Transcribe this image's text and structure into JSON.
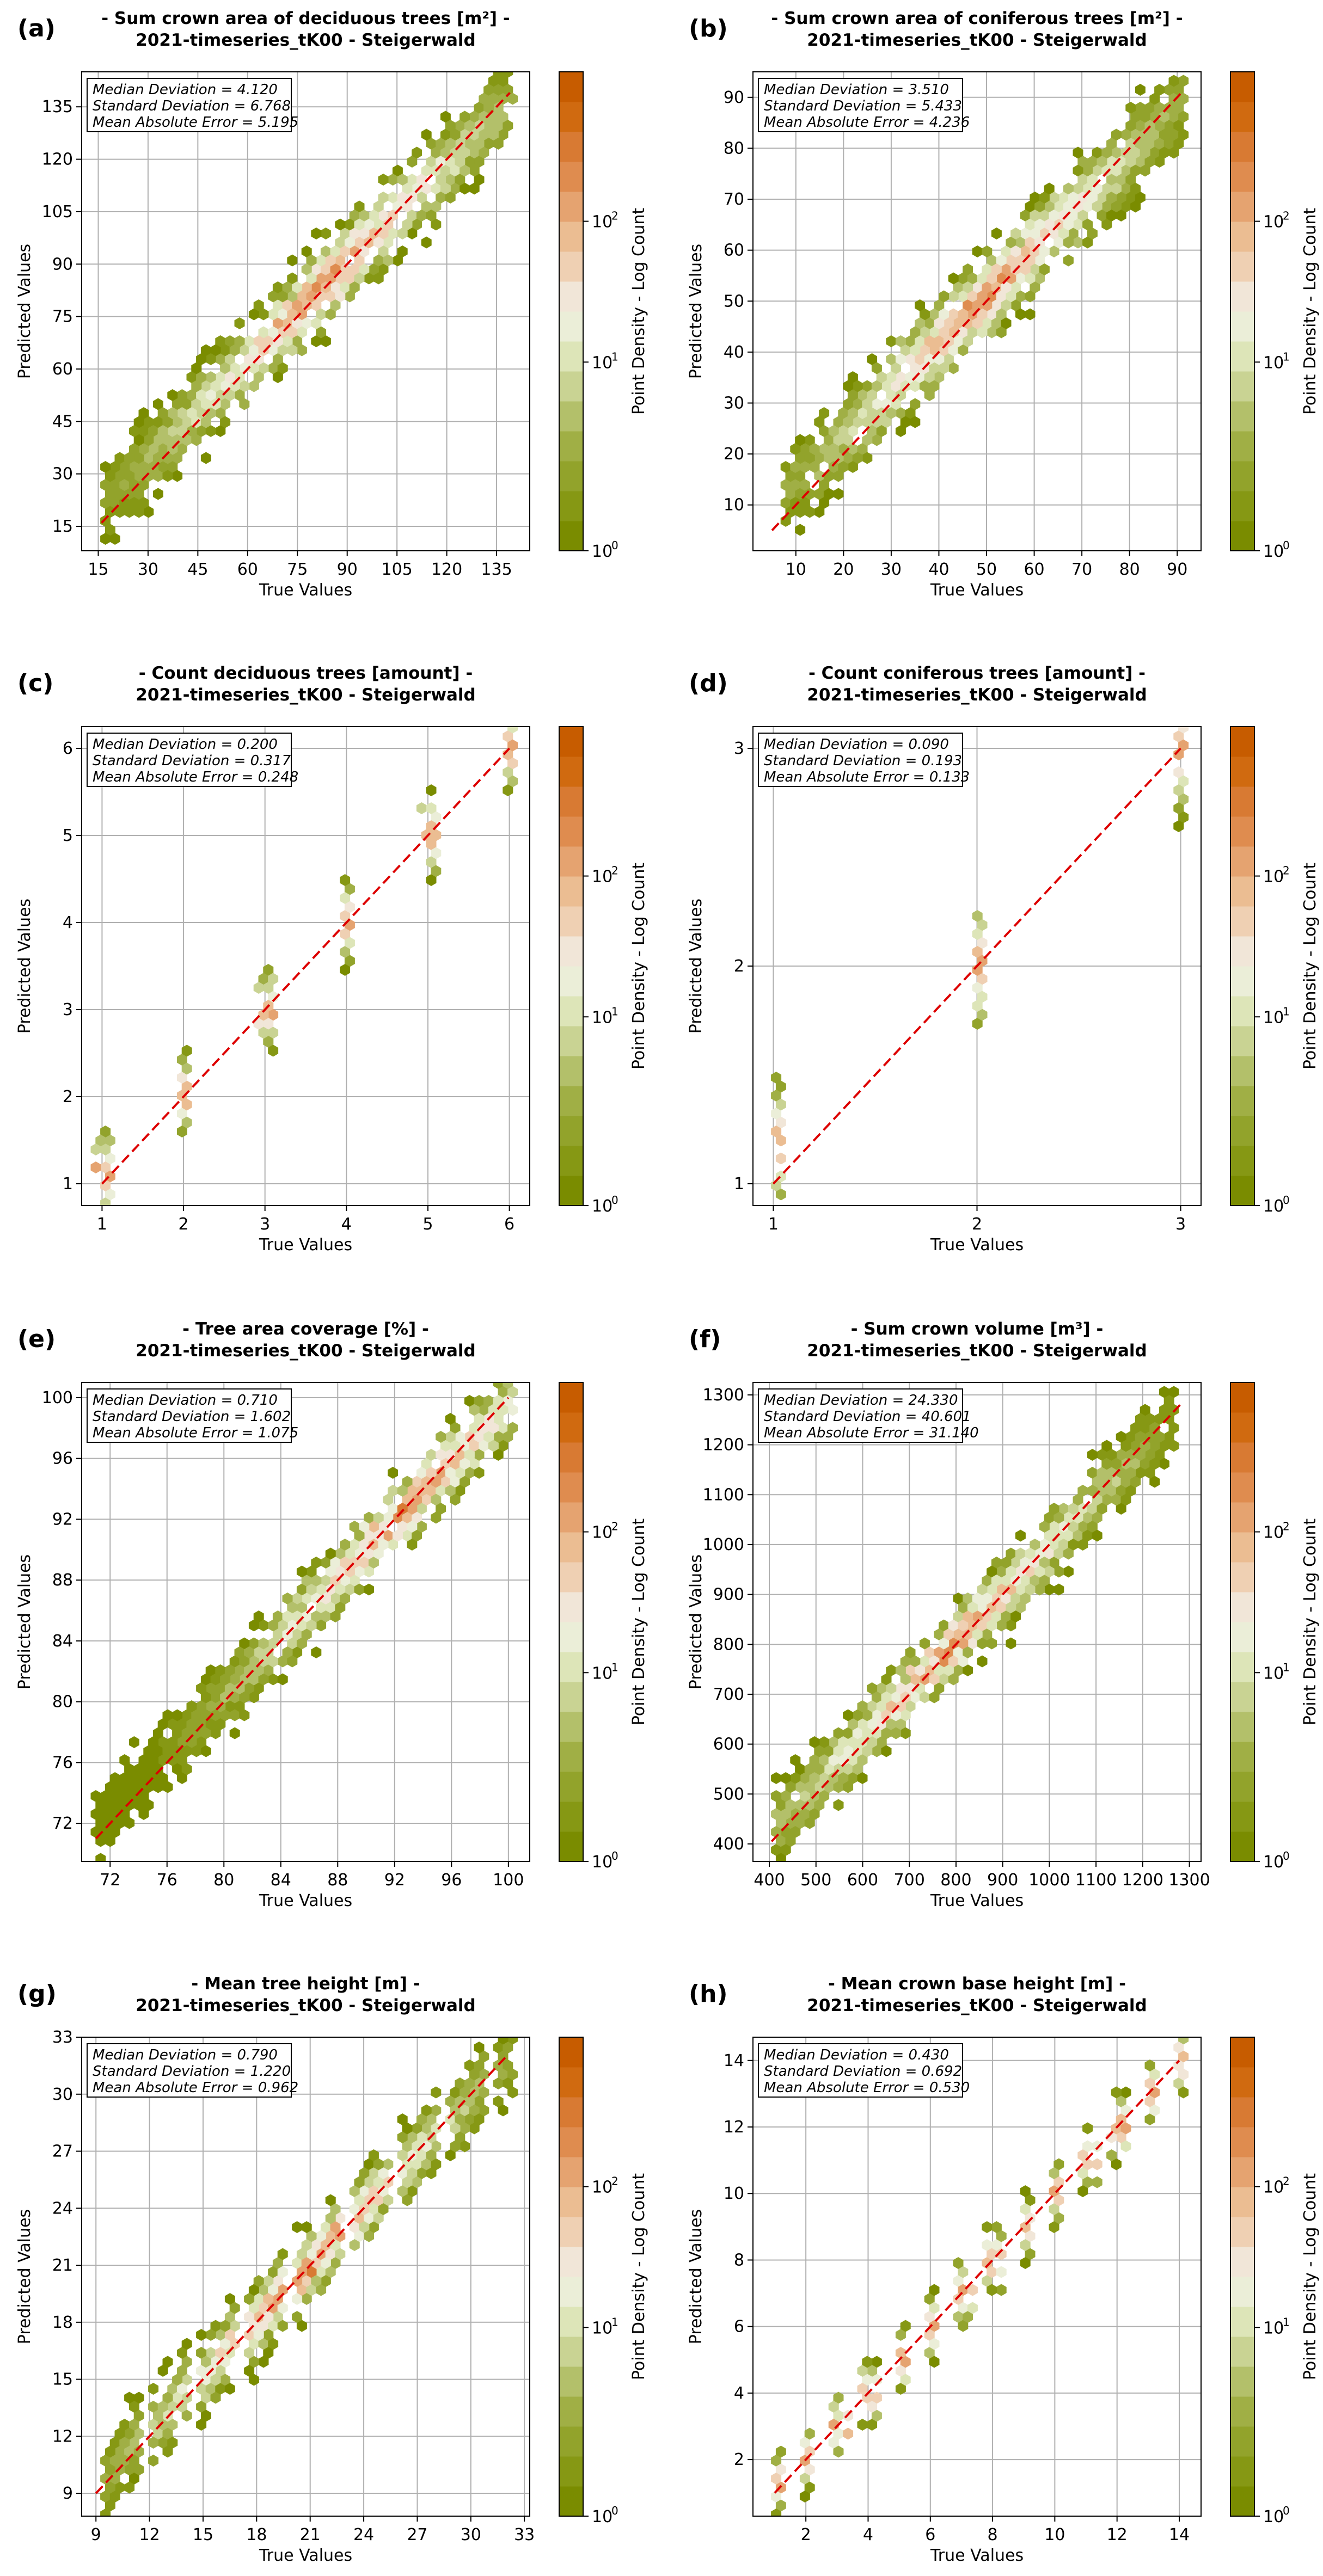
{
  "colormap": [
    "#7a8c00",
    "#869814",
    "#92a32b",
    "#a0af45",
    "#b3c06a",
    "#c9d393",
    "#dde5b8",
    "#ebeed8",
    "#f1e6d8",
    "#efd0b3",
    "#ebbd92",
    "#e5a370",
    "#df8c4f",
    "#d87a33",
    "#d06a10",
    "#c75c00"
  ],
  "colors": {
    "diagonal": "#dd0000",
    "grid": "#b0b0b0"
  },
  "common": {
    "xlabel": "True Values",
    "ylabel": "Predicted Values",
    "colorbar_label": "Point Density - Log Count",
    "colorbar_ticks": [
      "10",
      "10",
      "10"
    ],
    "colorbar_exponents": [
      "0",
      "1",
      "2"
    ]
  },
  "chart_data": [
    {
      "type": "hexbin",
      "label": "(a)",
      "title": "- Sum crown area of deciduous trees [m²] -",
      "subtitle": "2021-timeseries_tK00 - Steigerwald",
      "stats": [
        "Median Deviation = 4.120",
        "Standard Deviation = 6.768",
        "Mean Absolute Error = 5.195"
      ],
      "xlim": [
        10,
        145
      ],
      "ylim": [
        8,
        145
      ],
      "xticks": [
        15,
        30,
        45,
        60,
        75,
        90,
        105,
        120,
        135
      ],
      "yticks": [
        15,
        30,
        45,
        60,
        75,
        90,
        105,
        120,
        135
      ],
      "diag": [
        16,
        139
      ],
      "bias": 6,
      "spread": 6,
      "min": 16,
      "max": 139,
      "mode": "continuous",
      "peak": 0.55
    },
    {
      "type": "hexbin",
      "label": "(b)",
      "title": "- Sum crown area of coniferous trees [m²] -",
      "subtitle": "2021-timeseries_tK00 - Steigerwald",
      "stats": [
        "Median Deviation = 3.510",
        "Standard Deviation = 5.433",
        "Mean Absolute Error = 4.236"
      ],
      "xlim": [
        1,
        95
      ],
      "ylim": [
        1,
        95
      ],
      "xticks": [
        10,
        20,
        30,
        40,
        50,
        60,
        70,
        80,
        90
      ],
      "yticks": [
        10,
        20,
        30,
        40,
        50,
        60,
        70,
        80,
        90
      ],
      "diag": [
        5,
        91
      ],
      "bias": 5,
      "spread": 4.5,
      "min": 8,
      "max": 91,
      "mode": "continuous",
      "peak": 0.5
    },
    {
      "type": "hexbin",
      "label": "(c)",
      "title": "- Count deciduous trees [amount] -",
      "subtitle": "2021-timeseries_tK00 - Steigerwald",
      "stats": [
        "Median Deviation = 0.200",
        "Standard Deviation = 0.317",
        "Mean Absolute Error = 0.248"
      ],
      "xlim": [
        0.75,
        6.25
      ],
      "ylim": [
        0.75,
        6.25
      ],
      "xticks": [
        1,
        2,
        3,
        4,
        5,
        6
      ],
      "yticks": [
        1,
        2,
        3,
        4,
        5,
        6
      ],
      "diag": [
        1,
        6
      ],
      "bias": 0.2,
      "spread": 0.32,
      "levels": [
        1,
        2,
        3,
        4,
        5,
        6
      ],
      "mode": "discrete"
    },
    {
      "type": "hexbin",
      "label": "(d)",
      "title": "- Count coniferous trees [amount] -",
      "subtitle": "2021-timeseries_tK00 - Steigerwald",
      "stats": [
        "Median Deviation = 0.090",
        "Standard Deviation = 0.193",
        "Mean Absolute Error = 0.133"
      ],
      "xlim": [
        0.9,
        3.1
      ],
      "ylim": [
        0.9,
        3.1
      ],
      "xticks": [
        1,
        2,
        3
      ],
      "yticks": [
        1,
        2,
        3
      ],
      "diag": [
        1,
        3
      ],
      "bias": -0.3,
      "spread": 0.2,
      "levels": [
        1,
        2,
        3
      ],
      "mode": "discrete"
    },
    {
      "type": "hexbin",
      "label": "(e)",
      "title": "- Tree area coverage [%] -",
      "subtitle": "2021-timeseries_tK00 - Steigerwald",
      "stats": [
        "Median Deviation = 0.710",
        "Standard Deviation = 1.602",
        "Mean Absolute Error = 1.075"
      ],
      "xlim": [
        70,
        101.5
      ],
      "ylim": [
        69.5,
        101
      ],
      "xticks": [
        72,
        76,
        80,
        84,
        88,
        92,
        96,
        100
      ],
      "yticks": [
        72,
        76,
        80,
        84,
        88,
        92,
        96,
        100
      ],
      "diag": [
        71,
        100
      ],
      "bias": 1,
      "spread": 1.2,
      "min": 71,
      "max": 100,
      "mode": "coverage",
      "peak": 0.75
    },
    {
      "type": "hexbin",
      "label": "(f)",
      "title": "- Sum crown volume [m³] -",
      "subtitle": "2021-timeseries_tK00 - Steigerwald",
      "stats": [
        "Median Deviation = 24.330",
        "Standard Deviation = 40.601",
        "Mean Absolute Error = 31.140"
      ],
      "xlim": [
        365,
        1325
      ],
      "ylim": [
        365,
        1325
      ],
      "xticks": [
        400,
        500,
        600,
        700,
        800,
        900,
        1000,
        1100,
        1200,
        1300
      ],
      "yticks": [
        400,
        500,
        600,
        700,
        800,
        900,
        1000,
        1100,
        1200,
        1300
      ],
      "diag": [
        405,
        1285
      ],
      "bias": 30,
      "spread": 35,
      "min": 405,
      "max": 1265,
      "mode": "continuous",
      "peak": 0.45
    },
    {
      "type": "hexbin",
      "label": "(g)",
      "title": "- Mean tree height [m] -",
      "subtitle": "2021-timeseries_tK00 - Steigerwald",
      "stats": [
        "Median Deviation = 0.790",
        "Standard Deviation = 1.220",
        "Mean Absolute Error = 0.962"
      ],
      "xlim": [
        8.2,
        33.3
      ],
      "ylim": [
        7.8,
        33
      ],
      "xticks": [
        9,
        12,
        15,
        18,
        21,
        24,
        27,
        30,
        33
      ],
      "yticks": [
        9,
        12,
        15,
        18,
        21,
        24,
        27,
        30,
        33
      ],
      "diag": [
        9,
        32
      ],
      "bias": 0.6,
      "spread": 1.0,
      "min": 9,
      "max": 32,
      "mode": "banded",
      "peak": 0.5
    },
    {
      "type": "hexbin",
      "label": "(h)",
      "title": "- Mean crown base height [m] -",
      "subtitle": "2021-timeseries_tK00 - Steigerwald",
      "stats": [
        "Median Deviation = 0.430",
        "Standard Deviation = 0.692",
        "Mean Absolute Error = 0.530"
      ],
      "xlim": [
        0.3,
        14.7
      ],
      "ylim": [
        0.3,
        14.7
      ],
      "xticks": [
        2,
        4,
        6,
        8,
        10,
        12,
        14
      ],
      "yticks": [
        2,
        4,
        6,
        8,
        10,
        12,
        14
      ],
      "diag": [
        1,
        14
      ],
      "bias": -0.5,
      "spread": 0.6,
      "levels": [
        1,
        2,
        3,
        4,
        5,
        6,
        7,
        8,
        9,
        10,
        11,
        12,
        13,
        14
      ],
      "mode": "discrete"
    }
  ]
}
